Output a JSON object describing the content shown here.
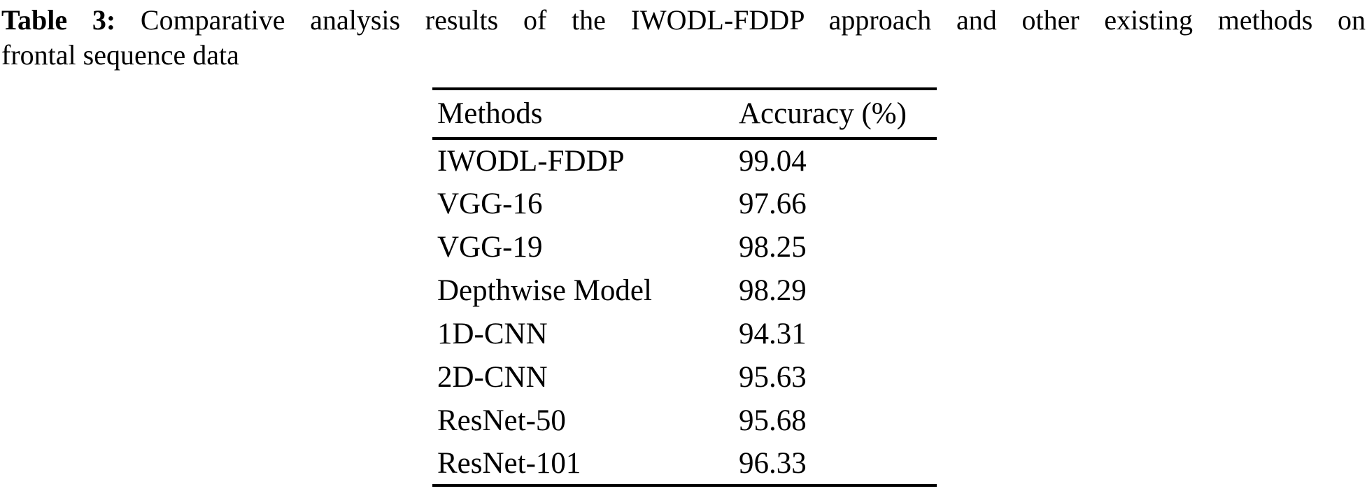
{
  "caption": {
    "label": "Table 3:",
    "line1_rest": "Comparative analysis results of the IWODL-FDDP approach and other existing methods on",
    "line2": "frontal sequence data"
  },
  "table": {
    "columns": [
      "Methods",
      "Accuracy (%)"
    ],
    "rows": [
      {
        "method": "IWODL-FDDP",
        "accuracy": "99.04"
      },
      {
        "method": "VGG-16",
        "accuracy": "97.66"
      },
      {
        "method": "VGG-19",
        "accuracy": "98.25"
      },
      {
        "method": "Depthwise Model",
        "accuracy": "98.29"
      },
      {
        "method": "1D-CNN",
        "accuracy": "94.31"
      },
      {
        "method": "2D-CNN",
        "accuracy": "95.63"
      },
      {
        "method": "ResNet-50",
        "accuracy": "95.68"
      },
      {
        "method": "ResNet-101",
        "accuracy": "96.33"
      }
    ]
  },
  "colors": {
    "background": "#ffffff",
    "text": "#000000",
    "rule": "#000000"
  }
}
